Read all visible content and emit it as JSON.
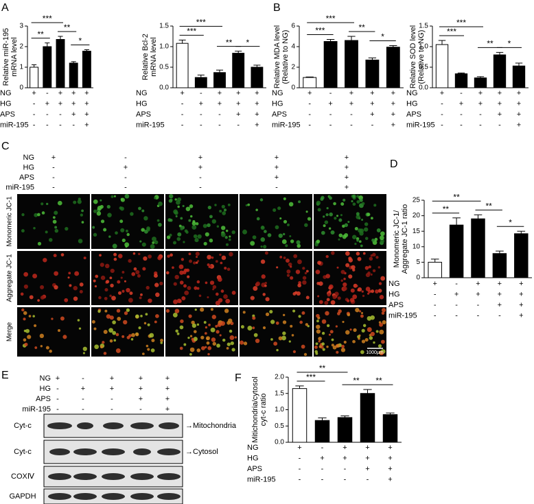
{
  "chart_data": [
    {
      "type": "bar",
      "letter": "A",
      "ylabel": [
        "Relative miR-195",
        "mRNA level"
      ],
      "categories": [
        null,
        null,
        null,
        null,
        null
      ],
      "values": [
        1.0,
        2.0,
        2.35,
        1.2,
        1.78
      ],
      "errors": [
        0.12,
        0.18,
        0.15,
        0.07,
        0.07
      ],
      "colors": [
        "#ffffff",
        "#000000",
        "#000000",
        "#000000",
        "#000000"
      ],
      "ylim": [
        0,
        3
      ],
      "yticks": [
        0,
        1,
        2,
        3
      ],
      "annotations": [
        "***",
        "**",
        "**",
        "*"
      ],
      "conditions": [
        {
          "label": "NG",
          "signs": [
            "+",
            "-",
            "+",
            "+",
            "+"
          ]
        },
        {
          "label": "HG",
          "signs": [
            "-",
            "+",
            "+",
            "+",
            "+"
          ]
        },
        {
          "label": "APS",
          "signs": [
            "-",
            "-",
            "-",
            "+",
            "+"
          ]
        },
        {
          "label": "miR-195",
          "signs": [
            "-",
            "-",
            "-",
            "-",
            "+"
          ]
        }
      ]
    },
    {
      "type": "bar",
      "ylabel": [
        "Relative Bcl-2",
        "mRNA level"
      ],
      "categories": [
        null,
        null,
        null,
        null,
        null
      ],
      "values": [
        1.08,
        0.25,
        0.37,
        0.84,
        0.5
      ],
      "errors": [
        0.08,
        0.06,
        0.06,
        0.05,
        0.05
      ],
      "colors": [
        "#ffffff",
        "#000000",
        "#000000",
        "#000000",
        "#000000"
      ],
      "ylim": [
        0,
        1.5
      ],
      "yticks": [
        {
          "value": 0,
          "label": "0.0"
        },
        0.5,
        {
          "value": 1,
          "label": "1.0"
        },
        1.5
      ],
      "annotations": [
        "***",
        "***",
        "**",
        "*"
      ],
      "conditions": [
        {
          "label": "NG",
          "signs": [
            "+",
            "-",
            "+",
            "+",
            "+"
          ]
        },
        {
          "label": "HG",
          "signs": [
            "-",
            "+",
            "+",
            "+",
            "+"
          ]
        },
        {
          "label": "APS",
          "signs": [
            "-",
            "-",
            "-",
            "+",
            "+"
          ]
        },
        {
          "label": "miR-195",
          "signs": [
            "-",
            "-",
            "-",
            "-",
            "+"
          ]
        }
      ]
    },
    {
      "type": "bar",
      "letter": "B",
      "ylabel": [
        "Relative MDA level",
        "(Relative to NG)"
      ],
      "categories": [
        null,
        null,
        null,
        null,
        null
      ],
      "values": [
        1.0,
        4.5,
        4.6,
        2.7,
        3.95
      ],
      "errors": [
        0.05,
        0.2,
        0.4,
        0.2,
        0.15
      ],
      "colors": [
        "#ffffff",
        "#000000",
        "#000000",
        "#000000",
        "#000000"
      ],
      "ylim": [
        0,
        6
      ],
      "yticks": [
        0,
        2,
        4,
        6
      ],
      "annotations": [
        "***",
        "***",
        "**",
        "*"
      ],
      "conditions": [
        {
          "label": "NG",
          "signs": [
            "+",
            "-",
            "+",
            "+",
            "+"
          ]
        },
        {
          "label": "HG",
          "signs": [
            "-",
            "+",
            "+",
            "+",
            "+"
          ]
        },
        {
          "label": "APS",
          "signs": [
            "-",
            "-",
            "-",
            "+",
            "+"
          ]
        },
        {
          "label": "miR-195",
          "signs": [
            "-",
            "-",
            "-",
            "-",
            "+"
          ]
        }
      ]
    },
    {
      "type": "bar",
      "ylabel": [
        "Relative SOD level",
        "(Relative to NG)"
      ],
      "categories": [
        null,
        null,
        null,
        null,
        null
      ],
      "values": [
        1.05,
        0.34,
        0.24,
        0.8,
        0.53
      ],
      "errors": [
        0.1,
        0.02,
        0.03,
        0.06,
        0.07
      ],
      "colors": [
        "#ffffff",
        "#000000",
        "#000000",
        "#000000",
        "#000000"
      ],
      "ylim": [
        0,
        1.5
      ],
      "yticks": [
        {
          "value": 0,
          "label": "0.0"
        },
        0.5,
        {
          "value": 1,
          "label": "1.0"
        },
        1.5
      ],
      "annotations": [
        "***",
        "***",
        "**",
        "*"
      ],
      "conditions": [
        {
          "label": "NG",
          "signs": [
            "+",
            "-",
            "+",
            "+",
            "+"
          ]
        },
        {
          "label": "HG",
          "signs": [
            "-",
            "+",
            "+",
            "+",
            "+"
          ]
        },
        {
          "label": "APS",
          "signs": [
            "-",
            "-",
            "-",
            "+",
            "+"
          ]
        },
        {
          "label": "miR-195",
          "signs": [
            "-",
            "-",
            "-",
            "-",
            "+"
          ]
        }
      ]
    },
    {
      "type": "bar",
      "letter": "D",
      "ylabel": [
        "Monomeric JC-1/",
        "Aggregate JC-1 ratio"
      ],
      "categories": [
        null,
        null,
        null,
        null,
        null
      ],
      "values": [
        5,
        17,
        19,
        7.8,
        14.2
      ],
      "errors": [
        1,
        2.3,
        1.3,
        0.8,
        0.8
      ],
      "colors": [
        "#ffffff",
        "#000000",
        "#000000",
        "#000000",
        "#000000"
      ],
      "ylim": [
        0,
        25
      ],
      "yticks": [
        0,
        5,
        10,
        15,
        20,
        25
      ],
      "annotations": [
        "**",
        "**",
        "**",
        "*"
      ],
      "conditions": [
        {
          "label": "NG",
          "signs": [
            "+",
            "-",
            "+",
            "+",
            "+"
          ]
        },
        {
          "label": "HG",
          "signs": [
            "-",
            "+",
            "+",
            "+",
            "+"
          ]
        },
        {
          "label": "APS",
          "signs": [
            "-",
            "-",
            "-",
            "+",
            "+"
          ]
        },
        {
          "label": "miR-195",
          "signs": [
            "-",
            "-",
            "-",
            "-",
            "+"
          ]
        }
      ]
    },
    {
      "type": "bar",
      "letter": "F",
      "ylabel": [
        "Mitichondria/cytosol",
        "cyt-c ratio"
      ],
      "categories": [
        null,
        null,
        null,
        null,
        null
      ],
      "values": [
        1.65,
        0.67,
        0.76,
        1.5,
        0.85
      ],
      "errors": [
        0.08,
        0.08,
        0.05,
        0.12,
        0.05
      ],
      "colors": [
        "#ffffff",
        "#000000",
        "#000000",
        "#000000",
        "#000000"
      ],
      "ylim": [
        0,
        2
      ],
      "yticks": [
        {
          "value": 0,
          "label": "0.0"
        },
        0.5,
        {
          "value": 1,
          "label": "1.0"
        },
        1.5,
        {
          "value": 2,
          "label": "2.0"
        }
      ],
      "annotations": [
        "**",
        "***",
        "**",
        "**"
      ],
      "conditions": [
        {
          "label": "NG",
          "signs": [
            "+",
            "-",
            "+",
            "+",
            "+"
          ]
        },
        {
          "label": "HG",
          "signs": [
            "-",
            "+",
            "+",
            "+",
            "+"
          ]
        },
        {
          "label": "APS",
          "signs": [
            "-",
            "-",
            "-",
            "+",
            "+"
          ]
        },
        {
          "label": "miR-195",
          "signs": [
            "-",
            "-",
            "-",
            "-",
            "+"
          ]
        }
      ]
    }
  ],
  "panel_c": {
    "letter": "C",
    "conditions": [
      {
        "label": "NG",
        "signs": [
          "+",
          "-",
          "+",
          "+",
          "+"
        ]
      },
      {
        "label": "HG",
        "signs": [
          "-",
          "+",
          "+",
          "+",
          "+"
        ]
      },
      {
        "label": "APS",
        "signs": [
          "-",
          "-",
          "-",
          "+",
          "+"
        ]
      },
      {
        "label": "miR-195",
        "signs": [
          "-",
          "-",
          "-",
          "-",
          "+"
        ]
      }
    ],
    "rows": [
      "Monomeric JC-1",
      "Aggregate JC-1",
      "Merge"
    ],
    "scale_bar": "1000μm"
  },
  "panel_e": {
    "letter": "E",
    "conditions": [
      {
        "label": "NG",
        "signs": [
          "+",
          "-",
          "+",
          "+",
          "+"
        ]
      },
      {
        "label": "HG",
        "signs": [
          "-",
          "+",
          "+",
          "+",
          "+"
        ]
      },
      {
        "label": "APS",
        "signs": [
          "-",
          "-",
          "-",
          "+",
          "+"
        ]
      },
      {
        "label": "miR-195",
        "signs": [
          "-",
          "-",
          "-",
          "-",
          "+"
        ]
      }
    ],
    "blots": [
      {
        "label": "Cyt-c",
        "note": "→Mitochondria"
      },
      {
        "label": "Cyt-c",
        "note": "→Cytosol"
      },
      {
        "label": "COXⅣ"
      },
      {
        "label": "GAPDH"
      }
    ]
  }
}
